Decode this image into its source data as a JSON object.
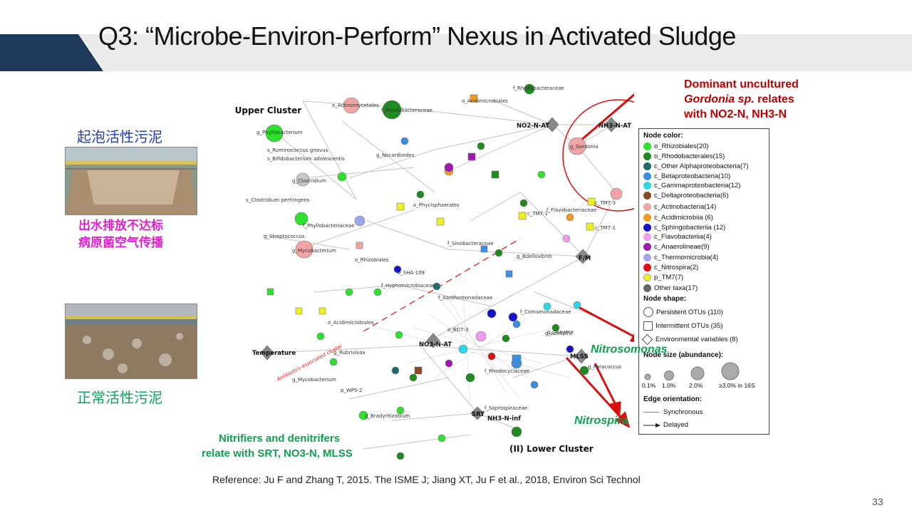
{
  "slide": {
    "title": "Q3: “Microbe-Environ-Perform” Nexus in Activated Sludge",
    "page_number": "33",
    "reference": "Reference: Ju F and Zhang T, 2015. The ISME J; Jiang XT, Ju F et al., 2018, Environ Sci Technol"
  },
  "left_panel": {
    "foaming_label": "起泡活性污泥",
    "problem_line1": "出水排放不达标",
    "problem_line2": "病原菌空气传播",
    "normal_label": "正常活性污泥"
  },
  "network": {
    "upper_cluster": "(I) Upper Cluster",
    "lower_cluster": "(II) Lower Cluster",
    "env_labels": [
      "NO2-N-AT",
      "NH3-N-AT",
      "F/M",
      "NO3-N-AT",
      "Temperature",
      "MLSS",
      "SRT",
      "NH3-N-inf"
    ],
    "taxa_labels": [
      "o_Actinomycetales",
      "f_Rhodobacteraceae",
      "o_Acidimicrobiales",
      "f_Rhodobacteraceae",
      "g_Phyllobacterium",
      "s_Ruminococcus gnavus",
      "s_Bifidobacterium adolescentis",
      "g_Nocardioides",
      "g_Gordonia",
      "g_Clostridium",
      "s_Clostridium perfringens",
      "g_Mycobacterium",
      "f_Phyllobacteriaceae",
      "g_Streptococcus",
      "o_Rhizobiales",
      "f_Sinobacteraceae",
      "f_Xanthomonadaceae",
      "f_Hyphomicrobiaceae",
      "o_Acidimicrobiales",
      "g_Rubrivivax",
      "g_Bradyrhizobium",
      "g_Mycobacterium",
      "p_WPS-2",
      "o_SHA-109",
      "f_Saprospiraceae",
      "g_Paracoccus",
      "g_Azospira",
      "f_Flavobacteriaceae",
      "c_TM7-1",
      "c_TM7-1",
      "c_TM7-3",
      "g_Thauera",
      "o_BD7-3",
      "f_Comamonadaceae",
      "o_Phycisphaerales",
      "g_Bdellovibrio",
      "f_Rhodocyclaceae"
    ],
    "annotation_red_dashed": "Antibiotics-associated cluster"
  },
  "annotations": {
    "gordonia_line1": "Dominant uncultured",
    "gordonia_line2a": "Gordonia sp.",
    "gordonia_line2b": " relates",
    "gordonia_line3": "with NO2-N, NH3-N",
    "nitrosomonas": "Nitrosomonas",
    "nitrospira": "Nitrospira",
    "nitrifiers_line1": "Nitrifiers and denitrifers",
    "nitrifiers_line2": "relate with SRT, NO3-N, MLSS"
  },
  "legend": {
    "node_color_title": "Node color:",
    "colors": [
      {
        "label": "o_Rhizobiales(20)",
        "color": "#2ee12e"
      },
      {
        "label": "o_Rhodobacterales(15)",
        "color": "#1f8a1f"
      },
      {
        "label": "c_Other Alphaproteobacteria(7)",
        "color": "#1b6e6a"
      },
      {
        "label": "c_Betaproteobacteria(10)",
        "color": "#3b8ee0"
      },
      {
        "label": "c_Gammaproteobacteria(12)",
        "color": "#27d8ea"
      },
      {
        "label": "c_Deltaproteobacteria(6)",
        "color": "#8a4a25"
      },
      {
        "label": "c_Actinobacteria(14)",
        "color": "#f2a4a4"
      },
      {
        "label": "c_Acidimicrobiia (6)",
        "color": "#f29a1e"
      },
      {
        "label": "c_Sphingobacteriia (12)",
        "color": "#1414c8"
      },
      {
        "label": "c_Flavobacteriia(4)",
        "color": "#f09cf0"
      },
      {
        "label": "c_Anaerolineae(9)",
        "color": "#a018b0"
      },
      {
        "label": "c_Thermomicrobia(4)",
        "color": "#a0a6ee"
      },
      {
        "label": "c_Nitrospira(2)",
        "color": "#e01010"
      },
      {
        "label": "p_TM7(7)",
        "color": "#f0f020"
      },
      {
        "label": "Other taxa(17)",
        "color": "#666666"
      }
    ],
    "node_shape_title": "Node shape:",
    "shapes": [
      {
        "label": "Persistent OTUs (110)",
        "shape": "circle"
      },
      {
        "label": "Intermittent OTUs (35)",
        "shape": "square"
      },
      {
        "label": "Environmental variables (8)",
        "shape": "diamond"
      }
    ],
    "node_size_title": "Node size (abundance):",
    "sizes": [
      "0.1%",
      "1.0%",
      "2.0%",
      "≥3.0% in 16S"
    ],
    "edge_title": "Edge orientation:",
    "edges": [
      "Synchronous",
      "Delayed"
    ]
  }
}
